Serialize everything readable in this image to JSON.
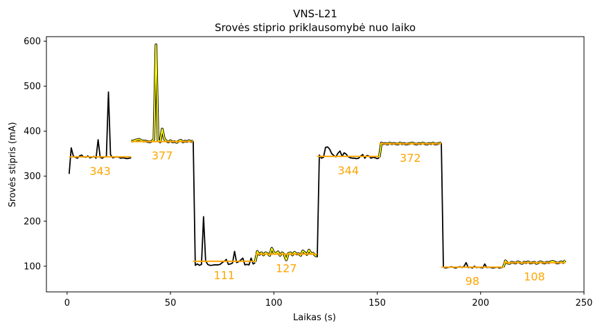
{
  "chart_data": {
    "type": "line",
    "title": "VNS-L21",
    "subtitle": "Srovės stiprio priklausomybė nuo laiko",
    "xlabel": "Laikas (s)",
    "ylabel": "Srovės stipris (mA)",
    "xlim": [
      -10,
      250
    ],
    "ylim": [
      43,
      610
    ],
    "xticks": [
      0,
      50,
      100,
      150,
      200,
      250
    ],
    "yticks": [
      100,
      200,
      300,
      400,
      500,
      600
    ],
    "grid": false,
    "colors": {
      "main": "#000000",
      "highlight": "#ffff00",
      "mean": "#ffa500",
      "highlight_edge": "#000000"
    },
    "series": [
      {
        "style": "black",
        "x": [
          1,
          2,
          3,
          4,
          5,
          6,
          7,
          8,
          9,
          10,
          11,
          12,
          13,
          14,
          15,
          16,
          17,
          18,
          19,
          20,
          21,
          22,
          23,
          24,
          25,
          26,
          27,
          28,
          29,
          30,
          31
        ],
        "y": [
          305,
          363,
          345,
          342,
          340,
          345,
          347,
          343,
          342,
          345,
          341,
          342,
          344,
          340,
          381,
          342,
          340,
          343,
          343,
          487,
          348,
          341,
          342,
          343,
          342,
          340,
          341,
          340,
          339,
          340,
          341
        ]
      },
      {
        "style": "yellow",
        "x": [
          31,
          32,
          33,
          34,
          35,
          36,
          37,
          38,
          39,
          40,
          41,
          42,
          43,
          44,
          45,
          46,
          47,
          48,
          49,
          50,
          51,
          52,
          53,
          54,
          55,
          56,
          57,
          58,
          59,
          60,
          61
        ],
        "y": [
          378,
          378,
          380,
          381,
          382,
          379,
          378,
          378,
          377,
          376,
          378,
          382,
          592,
          380,
          376,
          405,
          383,
          378,
          376,
          379,
          376,
          377,
          375,
          378,
          380,
          376,
          378,
          377,
          379,
          377,
          378
        ]
      },
      {
        "style": "black",
        "x": [
          61,
          62,
          63,
          64,
          65,
          66,
          67,
          68,
          69,
          70,
          71,
          72,
          73,
          74,
          75,
          76,
          77,
          78,
          79,
          80,
          81,
          82,
          83,
          84,
          85,
          86,
          87,
          88,
          89,
          90,
          91
        ],
        "y": [
          378,
          102,
          105,
          102,
          104,
          210,
          112,
          104,
          102,
          102,
          103,
          103,
          103,
          104,
          108,
          111,
          115,
          104,
          105,
          107,
          133,
          108,
          110,
          114,
          118,
          103,
          104,
          103,
          118,
          105,
          108
        ]
      },
      {
        "style": "yellow",
        "x": [
          91,
          92,
          93,
          94,
          95,
          96,
          97,
          98,
          99,
          100,
          101,
          102,
          103,
          104,
          105,
          106,
          107,
          108,
          109,
          110,
          111,
          112,
          113,
          114,
          115,
          116,
          117,
          118,
          119,
          120,
          121
        ],
        "y": [
          110,
          133,
          126,
          130,
          125,
          130,
          128,
          124,
          140,
          130,
          128,
          132,
          124,
          130,
          126,
          114,
          128,
          130,
          125,
          131,
          127,
          128,
          124,
          134,
          130,
          126,
          136,
          128,
          129,
          124,
          122
        ]
      },
      {
        "style": "black",
        "x": [
          121,
          122,
          123,
          124,
          125,
          126,
          127,
          128,
          129,
          130,
          131,
          132,
          133,
          134,
          135,
          136,
          137,
          138,
          139,
          140,
          141,
          142,
          143,
          144,
          145,
          146,
          147,
          148,
          149,
          150,
          151
        ],
        "y": [
          120,
          347,
          340,
          342,
          364,
          365,
          360,
          350,
          346,
          343,
          351,
          356,
          344,
          352,
          349,
          343,
          341,
          340,
          340,
          339,
          340,
          345,
          348,
          340,
          346,
          345,
          340,
          342,
          341,
          339,
          341
        ]
      },
      {
        "style": "yellow",
        "x": [
          151,
          152,
          153,
          154,
          155,
          156,
          157,
          158,
          159,
          160,
          161,
          162,
          163,
          164,
          165,
          166,
          167,
          168,
          169,
          170,
          171,
          172,
          173,
          174,
          175,
          176,
          177,
          178,
          179,
          180,
          181
        ],
        "y": [
          342,
          374,
          372,
          373,
          371,
          374,
          372,
          373,
          372,
          371,
          374,
          372,
          373,
          371,
          372,
          373,
          374,
          372,
          371,
          373,
          372,
          374,
          372,
          371,
          373,
          372,
          374,
          371,
          372,
          373,
          374
        ]
      },
      {
        "style": "black",
        "x": [
          181,
          182,
          183,
          184,
          185,
          186,
          187,
          188,
          189,
          190,
          191,
          192,
          193,
          194,
          195,
          196,
          197,
          198,
          199,
          200,
          201,
          202,
          203,
          204,
          205,
          206,
          207,
          208,
          209,
          210,
          211
        ],
        "y": [
          374,
          98,
          96,
          97,
          98,
          99,
          97,
          96,
          98,
          99,
          97,
          100,
          108,
          97,
          98,
          96,
          100,
          97,
          98,
          97,
          96,
          105,
          97,
          98,
          97,
          96,
          97,
          98,
          96,
          97,
          98
        ]
      },
      {
        "style": "yellow",
        "x": [
          211,
          212,
          213,
          214,
          215,
          216,
          217,
          218,
          219,
          220,
          221,
          222,
          223,
          224,
          225,
          226,
          227,
          228,
          229,
          230,
          231,
          232,
          233,
          234,
          235,
          236,
          237,
          238,
          239,
          240,
          241
        ],
        "y": [
          98,
          112,
          107,
          106,
          109,
          108,
          107,
          110,
          108,
          106,
          109,
          108,
          110,
          107,
          108,
          109,
          106,
          108,
          110,
          108,
          107,
          109,
          108,
          110,
          111,
          109,
          107,
          108,
          110,
          108,
          113
        ]
      }
    ],
    "mean_segments": [
      {
        "x": [
          1,
          31
        ],
        "y": 343,
        "label": "343"
      },
      {
        "x": [
          31,
          61
        ],
        "y": 377,
        "label": "377"
      },
      {
        "x": [
          61,
          91
        ],
        "y": 111,
        "label": "111"
      },
      {
        "x": [
          91,
          121
        ],
        "y": 127,
        "label": "127"
      },
      {
        "x": [
          121,
          151
        ],
        "y": 344,
        "label": "344"
      },
      {
        "x": [
          151,
          181
        ],
        "y": 372,
        "label": "372"
      },
      {
        "x": [
          181,
          211
        ],
        "y": 98,
        "label": "98"
      },
      {
        "x": [
          211,
          241
        ],
        "y": 108,
        "label": "108"
      }
    ]
  }
}
